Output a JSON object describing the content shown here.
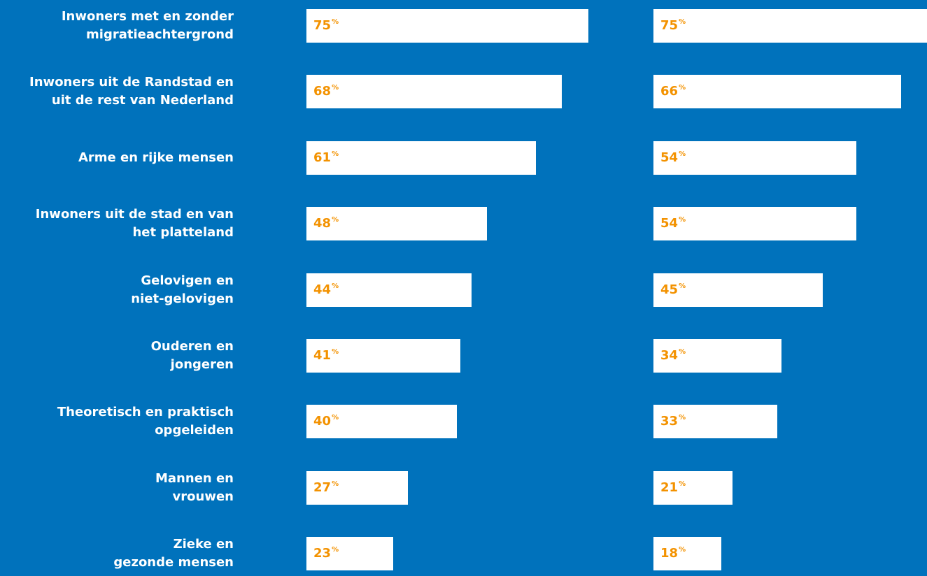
{
  "chart_data": {
    "type": "bar",
    "orientation": "horizontal",
    "categories": [
      "Inwoners met en zonder\nmigratieachtergrond",
      "Inwoners uit de Randstad en\nuit de rest van Nederland",
      "Arme en rijke mensen",
      "Inwoners uit de stad en van\nhet platteland",
      "Gelovigen en\nniet-gelovigen",
      "Ouderen en\njongeren",
      "Theoretisch en praktisch\nopgeleiden",
      "Mannen en\nvrouwen",
      "Zieke en\ngezonde mensen"
    ],
    "unit": "%",
    "series": [
      {
        "color": "#ffffff",
        "values": [
          75,
          68,
          61,
          48,
          44,
          41,
          40,
          27,
          23
        ]
      },
      {
        "color": "#ffffff",
        "values": [
          75,
          66,
          54,
          54,
          45,
          34,
          33,
          21,
          18
        ]
      }
    ],
    "background": "#0072bc",
    "label_color": "#f39200"
  }
}
